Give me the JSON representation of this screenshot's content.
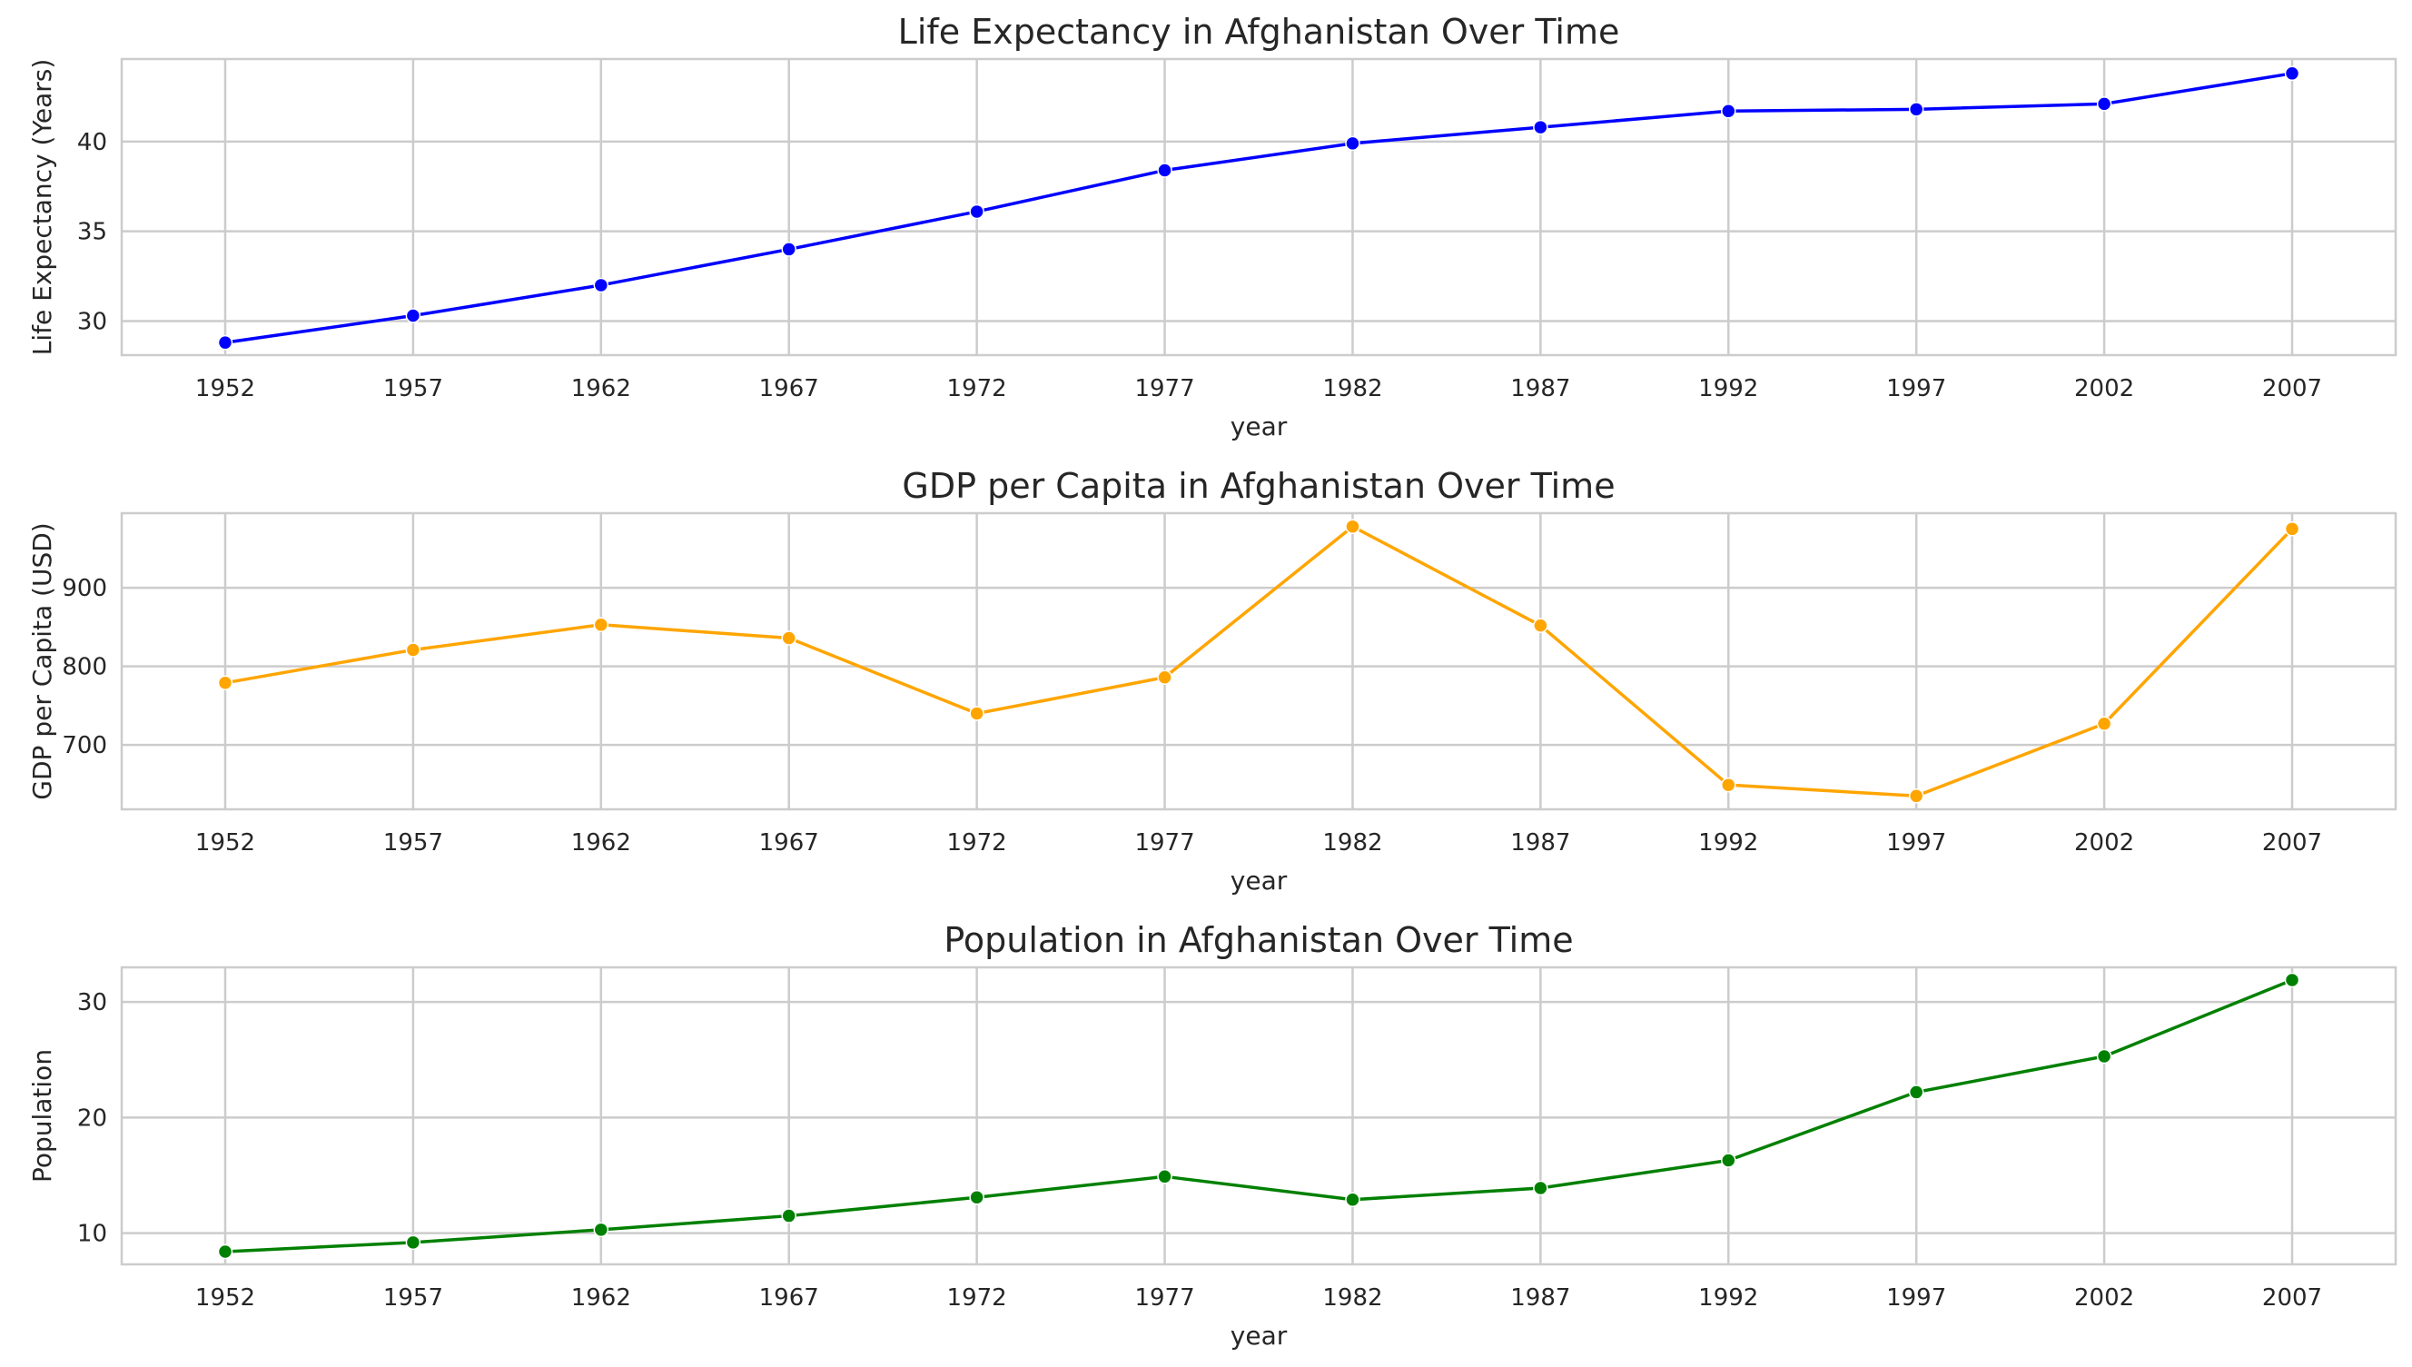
{
  "chart_data": [
    {
      "type": "line",
      "title": "Life Expectancy in Afghanistan Over Time",
      "xlabel": "year",
      "ylabel": "Life Expectancy (Years)",
      "x": [
        1952,
        1957,
        1962,
        1967,
        1972,
        1977,
        1982,
        1987,
        1992,
        1997,
        2002,
        2007
      ],
      "xticks": [
        "1952",
        "1957",
        "1962",
        "1967",
        "1972",
        "1977",
        "1982",
        "1987",
        "1992",
        "1997",
        "2002",
        "2007"
      ],
      "values": [
        28.8,
        30.3,
        32.0,
        34.0,
        36.1,
        38.4,
        39.9,
        40.8,
        41.7,
        41.8,
        42.1,
        43.8
      ],
      "yticks": [
        "30",
        "35",
        "40"
      ],
      "ytick_values": [
        30,
        35,
        40
      ],
      "ylim": [
        28.1,
        44.6
      ],
      "color": "#0000ff",
      "grid": true
    },
    {
      "type": "line",
      "title": "GDP per Capita in Afghanistan Over Time",
      "xlabel": "year",
      "ylabel": "GDP per Capita (USD)",
      "x": [
        1952,
        1957,
        1962,
        1967,
        1972,
        1977,
        1982,
        1987,
        1992,
        1997,
        2002,
        2007
      ],
      "xticks": [
        "1952",
        "1957",
        "1962",
        "1967",
        "1972",
        "1977",
        "1982",
        "1987",
        "1992",
        "1997",
        "2002",
        "2007"
      ],
      "values": [
        779,
        821,
        853,
        836,
        740,
        786,
        978,
        852,
        649,
        635,
        727,
        975
      ],
      "yticks": [
        "700",
        "800",
        "900"
      ],
      "ytick_values": [
        700,
        800,
        900
      ],
      "ylim": [
        618,
        995
      ],
      "color": "#ffa500",
      "grid": true
    },
    {
      "type": "line",
      "title": "Population in Afghanistan Over Time",
      "xlabel": "year",
      "ylabel": "Population",
      "x": [
        1952,
        1957,
        1962,
        1967,
        1972,
        1977,
        1982,
        1987,
        1992,
        1997,
        2002,
        2007
      ],
      "xticks": [
        "1952",
        "1957",
        "1962",
        "1967",
        "1972",
        "1977",
        "1982",
        "1987",
        "1992",
        "1997",
        "2002",
        "2007"
      ],
      "values": [
        8.4,
        9.2,
        10.3,
        11.5,
        13.1,
        14.9,
        12.9,
        13.9,
        16.3,
        22.2,
        25.3,
        31.9
      ],
      "yticks": [
        "10",
        "20",
        "30"
      ],
      "ytick_values": [
        10,
        20,
        30
      ],
      "ylim": [
        7.3,
        33.0
      ],
      "color": "#008000",
      "grid": true
    }
  ]
}
